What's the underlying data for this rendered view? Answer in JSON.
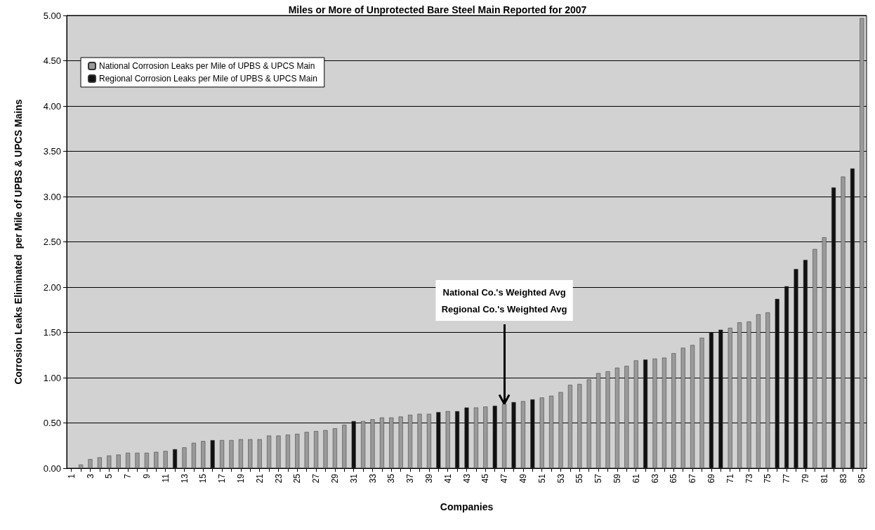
{
  "chart_data": {
    "type": "bar",
    "title": "Miles or More of Unprotected Bare Steel Main Reported for 2007",
    "xlabel": "Companies",
    "ylabel": "Corrosion Leaks Eliminated  per Mile of UPBS & UPCS Mains",
    "categories": [
      "1",
      null,
      "3",
      null,
      "5",
      null,
      "7",
      null,
      "9",
      null,
      "11",
      null,
      "13",
      null,
      "15",
      null,
      "17",
      null,
      "19",
      null,
      "21",
      null,
      "23",
      null,
      "25",
      null,
      "27",
      null,
      "29",
      null,
      "31",
      null,
      "33",
      null,
      "35",
      null,
      "37",
      null,
      "39",
      null,
      "41",
      null,
      "43",
      null,
      "45",
      null,
      "47",
      null,
      "49",
      null,
      "51",
      null,
      "53",
      null,
      "55",
      null,
      "57",
      null,
      "59",
      null,
      "61",
      null,
      "63",
      null,
      "65",
      null,
      "67",
      null,
      "69",
      null,
      "71",
      null,
      "73",
      null,
      "75",
      null,
      "77",
      null,
      "79",
      null,
      "81",
      null,
      "83",
      null,
      "85"
    ],
    "series": [
      {
        "name": "National Corrosion Leaks per Mile of UPBS & UPCS Main",
        "color": "#9a9a9a",
        "values": [
          null,
          0.04,
          0.1,
          0.12,
          0.14,
          0.15,
          0.17,
          0.17,
          0.17,
          0.18,
          0.19,
          null,
          0.23,
          0.28,
          0.3,
          null,
          0.31,
          0.31,
          0.32,
          0.32,
          0.32,
          0.36,
          0.36,
          0.37,
          0.38,
          0.4,
          0.41,
          0.42,
          0.44,
          0.48,
          null,
          0.52,
          0.54,
          0.56,
          0.56,
          0.57,
          0.59,
          0.6,
          0.6,
          null,
          0.63,
          null,
          null,
          0.67,
          0.68,
          null,
          0.71,
          null,
          0.74,
          null,
          0.78,
          0.8,
          0.84,
          0.92,
          0.93,
          0.98,
          1.05,
          1.07,
          1.11,
          1.13,
          1.19,
          null,
          1.21,
          1.22,
          1.27,
          1.33,
          1.36,
          1.44,
          null,
          null,
          1.55,
          1.61,
          1.62,
          1.7,
          1.72,
          null,
          null,
          null,
          null,
          2.42,
          2.55,
          null,
          3.22,
          null,
          4.97
        ]
      },
      {
        "name": "Regional Corrosion Leaks per Mile of UPBS & UPCS Main",
        "color": "#111111",
        "values": [
          null,
          null,
          null,
          null,
          null,
          null,
          null,
          null,
          null,
          null,
          null,
          0.21,
          null,
          null,
          null,
          0.31,
          null,
          null,
          null,
          null,
          null,
          null,
          null,
          null,
          null,
          null,
          null,
          null,
          null,
          null,
          0.52,
          null,
          null,
          null,
          null,
          null,
          null,
          null,
          null,
          0.62,
          null,
          0.63,
          0.67,
          null,
          null,
          0.69,
          null,
          0.73,
          null,
          0.76,
          null,
          null,
          null,
          null,
          null,
          null,
          null,
          null,
          null,
          null,
          null,
          1.2,
          null,
          null,
          null,
          null,
          null,
          null,
          1.5,
          1.53,
          null,
          null,
          null,
          null,
          null,
          1.87,
          2.01,
          2.2,
          2.3,
          null,
          null,
          3.1,
          null,
          3.31,
          null
        ]
      }
    ],
    "stacked": true,
    "ylim": [
      0,
      5
    ],
    "yticks": [
      {
        "value": 0,
        "label": "0.00"
      },
      {
        "value": 0.5,
        "label": "0.50"
      },
      {
        "value": 1,
        "label": "1.00"
      },
      {
        "value": 1.5,
        "label": "1.50"
      },
      {
        "value": 2,
        "label": "2.00"
      },
      {
        "value": 2.5,
        "label": "2.50"
      },
      {
        "value": 3,
        "label": "3.00"
      },
      {
        "value": 3.5,
        "label": "3.50"
      },
      {
        "value": 4,
        "label": "4.00"
      },
      {
        "value": 4.5,
        "label": "4.50"
      },
      {
        "value": 5,
        "label": "5.00"
      }
    ],
    "grid": "y",
    "legend": "top left",
    "annotations": [
      "National Co.'s Weighted Avg",
      {
        "text": "Regional Co.'s Weighted Avg",
        "x": "47",
        "y": 0.71
      }
    ]
  }
}
